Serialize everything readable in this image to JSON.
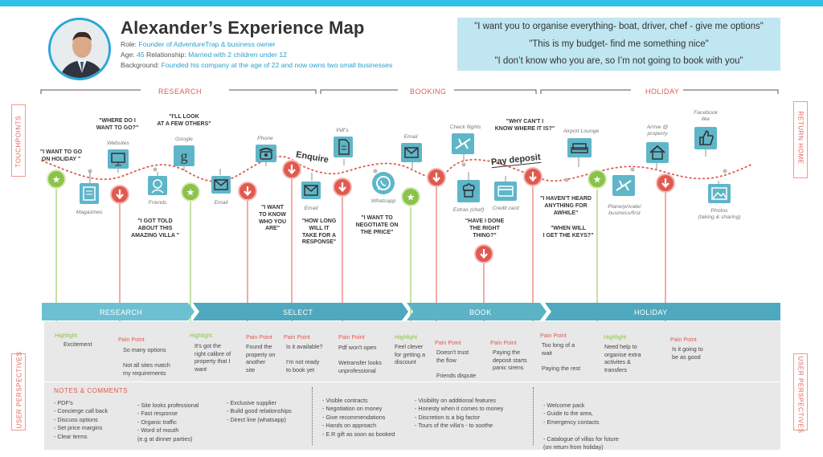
{
  "header": {
    "title": "Alexander’s Experience Map",
    "role_label": "Role:",
    "role_value": "Founder of AdventureTrap & business owner",
    "age_label": "Age:",
    "age_value": "45",
    "relationship_label": "Relationship:",
    "relationship_value": "Married with 2 children under 12",
    "background_label": "Background:",
    "background_value": "Founded his company at the age of 22 and now owns two small businesses"
  },
  "quotes": [
    "\"I want you to organise everything- boat, driver, chef - give me options\"",
    "\"This is my budget- find me something nice\"",
    "\"I don’t know who you are, so I’m not going to book with you\""
  ],
  "phases": [
    "RESEARCH",
    "BOOKING",
    "HOLIDAY"
  ],
  "side_labels": {
    "touchpoints": "TOUCHPOINTS",
    "return_home": "RETURN HOME",
    "user_perspectives": "USER PERSPECTIVES"
  },
  "touchpoints": {
    "magazines": "Magazines",
    "websites": "Websites",
    "friends": "Friends",
    "google": "Google",
    "email1": "Email",
    "phone": "Phone",
    "email2": "Email",
    "pdfs": "Pdf’s",
    "whatsapp": "Whatsapp",
    "email3": "Email",
    "check_flights": "Check flights",
    "extras_chef": "Extras (chef)",
    "credit_card": "Credit card",
    "airport_lounge": "Airport Lounge",
    "plane": "Plane/private/\nbusiness/first",
    "arrive": "Arrive @\nproperty",
    "facebook": "Facebook\nlike",
    "photos": "Photos\n(taking & sharing)"
  },
  "user_quotes": {
    "q1": "\"I WANT TO GO\nON HOLIDAY \"",
    "q2": "\"WHERE DO I\nWANT TO GO?\"",
    "q3": "\"I'LL LOOK\nAT A FEW OTHERS\"",
    "q4": "\"I GOT TOLD\nABOUT THIS\nAMAZING VILLA \"",
    "q5": "\"I WANT\nTO KNOW\nWHO YOU\nARE\"",
    "q6": "\"HOW LONG\nWILL IT\nTAKE FOR A\nRESPONSE\"",
    "q7": "\"I WANT TO\nNEGOTIATE ON\nTHE PRICE\"",
    "q8": "\"HAVE I DONE\nTHE RIGHT\nTHING?\"",
    "q9": "\"WHY CAN'T I\nKNOW WHERE IT IS?\"",
    "q10": "\"I HAVEN'T HEARD\nANYTHING FOR\nAWHILE\"",
    "q11": "\"WHEN WILL\nI GET THE KEYS?\""
  },
  "annotations": {
    "enquire": "Enquire",
    "pay_deposit": "Pay deposit"
  },
  "stages": [
    "RESEARCH",
    "SELECT",
    "BOOK",
    "HOLIDAY"
  ],
  "perspectives": [
    {
      "type": "Highlight",
      "text": "Excitement"
    },
    {
      "type": "Pain Point",
      "text": "So many options\n\nNot all sites match\nmy requirements"
    },
    {
      "type": "Highlight",
      "text": "It's got the\nright calibre of\nproperty that I\nwant"
    },
    {
      "type": "Pain Point",
      "text": "Found the\nproperty on\nanother\nsite"
    },
    {
      "type": "Pain Point",
      "text": "Is it available?\n\nI'm not ready\nto book yet"
    },
    {
      "type": "Pain Point",
      "text": "Pdf won't open\n\nWetransfer looks\nunprofessional"
    },
    {
      "type": "Highlight",
      "text": "Feel clever\nfor getting a\ndiscount"
    },
    {
      "type": "Pain Point",
      "text": "Doesn't trust\nthe flow\n\nFriends dispute"
    },
    {
      "type": "Pain Point",
      "text": "Paying the\ndeposit starts\npanic sirens"
    },
    {
      "type": "Pain Point",
      "text": "Too long of a\nwait\n\nPaying the rest"
    },
    {
      "type": "Highlight",
      "text": "Need help to\norganise extra\nactivites &\ntransfers"
    },
    {
      "type": "Pain Point",
      "text": "Is it going to\nbe as good"
    }
  ],
  "notes": {
    "title": "NOTES & COMMENTS",
    "col1": "- PDF's\n- Concierge call back\n- Discuss options\n- Set price margins\n- Clear terms",
    "col2": "- Site looks professional\n- Fast response\n- Organic traffic\n- Word of mouth\n  (e.g at dinner parties)",
    "col3": "- Exclusive supplier\n- Build good relationships\n- Direct line (whatsapp)",
    "col4": "- Visible contracts\n- Negotiation on money\n- Give recommendations\n- Hands on approach\n- E.R gift as soon as booked",
    "col5": "- Visibility on additional features\n- Honesty when it comes to money\n- Discretion is a big factor\n- Tours of the villa's - to soothe",
    "col6": "- Welcome pack\n- Guide to the area,\n- Emergency contacts\n\n- Catalogue of villas for future\n  (on return from holiday)"
  },
  "colors": {
    "accent": "#2ec0e6",
    "highlight": "#8bc34a",
    "pain": "#e05a4f",
    "teal": "#5fb6c9",
    "band": "#5eb3c6"
  }
}
